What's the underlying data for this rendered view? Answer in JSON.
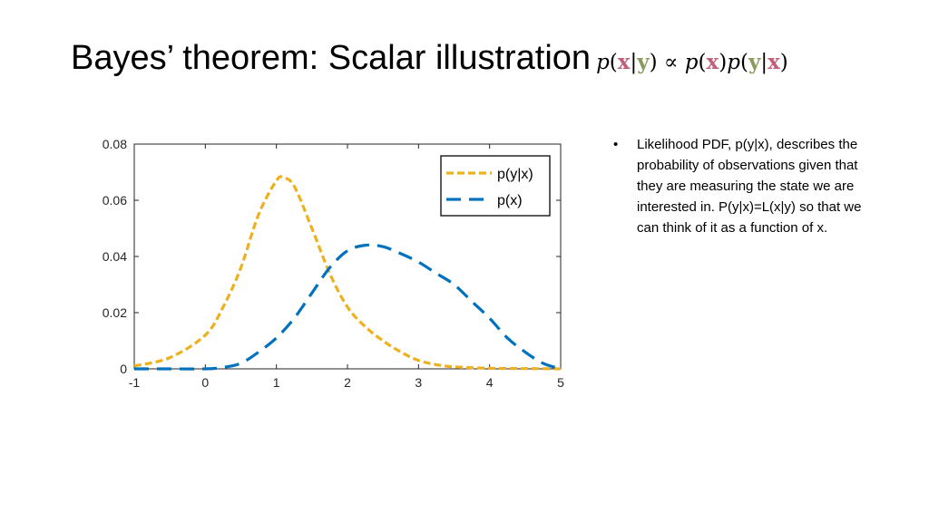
{
  "slide": {
    "title": "Bayes’ theorem:  Scalar illustration",
    "formula": {
      "p1": "p",
      "open1": "(",
      "x1": "x",
      "bar1": "|",
      "y1": "y",
      "close1": ")",
      "prop": " ∝ ",
      "p2": "p",
      "open2": "(",
      "x2": "x",
      "close2": ")",
      "p3": "p",
      "open3": "(",
      "y3": "y",
      "bar3": "|",
      "x3": "x",
      "close3": ")"
    },
    "bullet": {
      "marker": "•",
      "text": "Likelihood PDF, p(y|x), describes the probability of observations given that they are measuring the state we are interested in. P(y|x)=L(x|y) so that we can think of it as a function of x."
    }
  },
  "chart_data": {
    "type": "line",
    "xlim": [
      -1,
      5
    ],
    "ylim": [
      0,
      0.08
    ],
    "xticks": [
      -1,
      0,
      1,
      2,
      3,
      4,
      5
    ],
    "yticks": [
      0,
      0.02,
      0.04,
      0.06,
      0.08
    ],
    "xtick_labels": [
      "-1",
      "0",
      "1",
      "2",
      "3",
      "4",
      "5"
    ],
    "ytick_labels": [
      "0",
      "0.02",
      "0.04",
      "0.06",
      "0.08"
    ],
    "grid": false,
    "legend_position": "top-right",
    "series": [
      {
        "name": "p(y|x)",
        "color": "#EDB120",
        "style": "short-dash",
        "x": [
          -1,
          -0.5,
          0,
          0.25,
          0.5,
          0.75,
          1,
          1.1,
          1.25,
          1.5,
          1.75,
          2,
          2.25,
          2.5,
          2.75,
          3,
          3.25,
          3.5,
          4,
          4.5,
          5
        ],
        "y": [
          0.001,
          0.004,
          0.012,
          0.022,
          0.036,
          0.055,
          0.067,
          0.068,
          0.065,
          0.05,
          0.034,
          0.022,
          0.015,
          0.01,
          0.006,
          0.003,
          0.0015,
          0.0007,
          0.0002,
          0.0001,
          0
        ]
      },
      {
        "name": "p(x)",
        "color": "#0072BD",
        "style": "long-dash",
        "x": [
          -1,
          -0.5,
          0,
          0.25,
          0.5,
          0.75,
          1,
          1.25,
          1.5,
          1.75,
          2,
          2.25,
          2.5,
          2.75,
          3,
          3.25,
          3.5,
          3.75,
          4,
          4.25,
          4.5,
          4.75,
          5
        ],
        "y": [
          0,
          0,
          0,
          0.0005,
          0.002,
          0.006,
          0.011,
          0.018,
          0.027,
          0.036,
          0.042,
          0.044,
          0.0435,
          0.041,
          0.038,
          0.034,
          0.03,
          0.024,
          0.018,
          0.011,
          0.006,
          0.002,
          0
        ]
      }
    ]
  }
}
